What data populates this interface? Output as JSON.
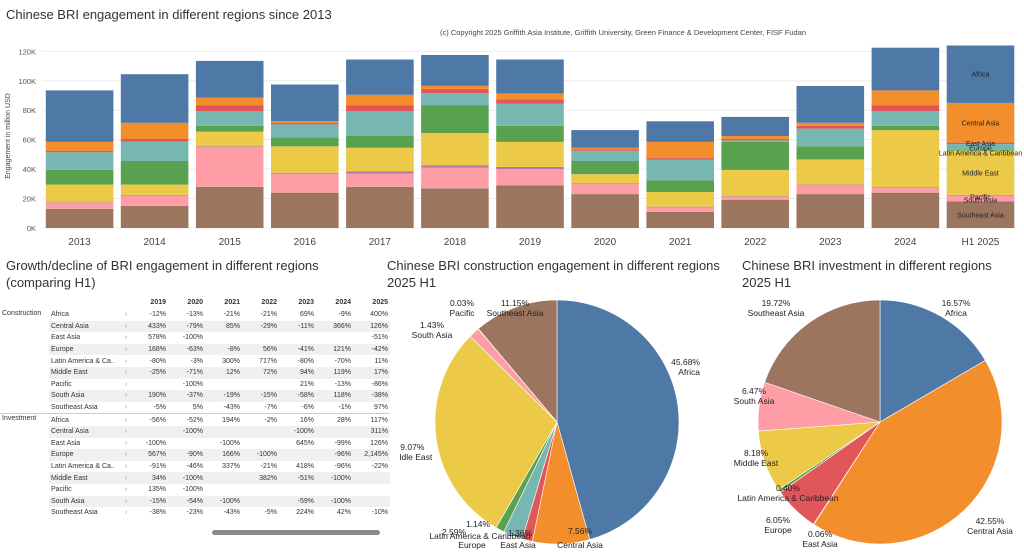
{
  "top": {
    "title": "Chinese BRI engagement in different regions since 2013",
    "copyright": "(c) Copyright 2025 Griffith Asia Institute, Griffith University, Green Finance & Development Center, FISF Fudan"
  },
  "colors": {
    "Africa": "#4e79a7",
    "Central Asia": "#f28e2b",
    "Europe": "#e15759",
    "East Asia": "#76b7b2",
    "Latin America & Caribbean": "#59a14f",
    "Middle East": "#edc948",
    "Pacific": "#b07aa1",
    "South Asia": "#ff9da7",
    "Southeast Asia": "#9c755f"
  },
  "chart_data": [
    {
      "type": "bar",
      "stacked": true,
      "title": "Chinese BRI engagement in different regions since 2013",
      "ylabel": "Engagement in million USD",
      "ylim": [
        0,
        125000
      ],
      "yticks": [
        "0K",
        "20K",
        "40K",
        "60K",
        "80K",
        "100K",
        "120K"
      ],
      "categories": [
        "2013",
        "2014",
        "2015",
        "2016",
        "2017",
        "2018",
        "2019",
        "2020",
        "2021",
        "2022",
        "2023",
        "2024",
        "H1 2025"
      ],
      "series": [
        {
          "name": "Southeast Asia",
          "values": [
            13000,
            15000,
            28000,
            24000,
            28000,
            27000,
            29000,
            23000,
            11000,
            19000,
            23000,
            24000,
            18000
          ]
        },
        {
          "name": "South Asia",
          "values": [
            4000,
            7000,
            27000,
            13000,
            9000,
            14000,
            11000,
            7000,
            3000,
            2000,
            6000,
            3000,
            4000
          ]
        },
        {
          "name": "Pacific",
          "values": [
            500,
            500,
            500,
            500,
            1500,
            1500,
            1500,
            500,
            500,
            500,
            500,
            500,
            500
          ]
        },
        {
          "name": "Middle East",
          "values": [
            12000,
            7000,
            10000,
            18000,
            16000,
            22000,
            17000,
            6000,
            10000,
            18000,
            17000,
            39000,
            30000
          ]
        },
        {
          "name": "Latin America & Caribbean",
          "values": [
            10000,
            16000,
            4000,
            6000,
            8000,
            19000,
            11000,
            9000,
            8000,
            19000,
            9000,
            3000,
            500
          ]
        },
        {
          "name": "East Asia",
          "values": [
            12000,
            13000,
            10000,
            9000,
            17000,
            8000,
            15000,
            7000,
            14000,
            1000,
            12000,
            10000,
            4000
          ]
        },
        {
          "name": "Europe",
          "values": [
            1000,
            2000,
            4000,
            1000,
            4000,
            3000,
            3000,
            1000,
            1000,
            1000,
            2000,
            4000,
            1000
          ]
        },
        {
          "name": "Central Asia",
          "values": [
            6000,
            11000,
            5000,
            1000,
            7000,
            2000,
            4000,
            1000,
            11000,
            2000,
            2000,
            10000,
            27000
          ]
        },
        {
          "name": "Africa",
          "values": [
            35000,
            33000,
            25000,
            25000,
            24000,
            21000,
            23000,
            12000,
            14000,
            13000,
            25000,
            29000,
            39000
          ]
        }
      ],
      "bar_labels": [
        "Africa",
        "Central Asia",
        "East Asia",
        "Europe",
        "Latin America & Caribbean",
        "Middle East",
        "Pacific",
        "South Asia",
        "Southeast Asia"
      ]
    },
    {
      "type": "table",
      "title": "Growth/decline of BRI engagement in different regions (comparing H1)",
      "columns": [
        "2019",
        "2020",
        "2021",
        "2022",
        "2023",
        "2024",
        "2025"
      ],
      "sections": [
        {
          "name": "Construction",
          "rows": [
            {
              "region": "Africa",
              "values": [
                "-12%",
                "-13%",
                "-21%",
                "-21%",
                "69%",
                "-9%",
                "400%"
              ]
            },
            {
              "region": "Central Asia",
              "values": [
                "433%",
                "-79%",
                "85%",
                "-29%",
                "-11%",
                "366%",
                "126%"
              ]
            },
            {
              "region": "East Asia",
              "values": [
                "578%",
                "-100%",
                "",
                "",
                "",
                "",
                "-51%"
              ]
            },
            {
              "region": "Europe",
              "values": [
                "168%",
                "-63%",
                "-8%",
                "56%",
                "-41%",
                "121%",
                "-42%"
              ]
            },
            {
              "region": "Latin America & Ca..",
              "values": [
                "-80%",
                "-3%",
                "300%",
                "717%",
                "-80%",
                "-70%",
                "11%"
              ]
            },
            {
              "region": "Middle East",
              "values": [
                "-25%",
                "-71%",
                "12%",
                "72%",
                "94%",
                "119%",
                "17%"
              ]
            },
            {
              "region": "Pacific",
              "values": [
                "",
                "-100%",
                "",
                "",
                "21%",
                "-13%",
                "-86%"
              ]
            },
            {
              "region": "South Asia",
              "values": [
                "190%",
                "-37%",
                "-19%",
                "-15%",
                "-58%",
                "118%",
                "-38%"
              ]
            },
            {
              "region": "Southeast Asia",
              "values": [
                "-5%",
                "5%",
                "-43%",
                "-7%",
                "-6%",
                "-1%",
                "97%"
              ]
            }
          ]
        },
        {
          "name": "Investment",
          "rows": [
            {
              "region": "Africa",
              "values": [
                "-56%",
                "-52%",
                "194%",
                "-2%",
                "16%",
                "28%",
                "117%"
              ]
            },
            {
              "region": "Central Asia",
              "values": [
                "",
                "-100%",
                "",
                "",
                "-100%",
                "",
                "311%"
              ]
            },
            {
              "region": "East Asia",
              "values": [
                "-100%",
                "",
                "-100%",
                "",
                "645%",
                "-99%",
                "126%"
              ]
            },
            {
              "region": "Europe",
              "values": [
                "567%",
                "-90%",
                "166%",
                "-100%",
                "",
                "-96%",
                "2,145%"
              ]
            },
            {
              "region": "Latin America & Ca..",
              "values": [
                "-91%",
                "-46%",
                "337%",
                "-21%",
                "418%",
                "-96%",
                "-22%"
              ]
            },
            {
              "region": "Middle East",
              "values": [
                "34%",
                "-100%",
                "",
                "382%",
                "-51%",
                "-100%",
                ""
              ]
            },
            {
              "region": "Pacific",
              "values": [
                "135%",
                "-100%",
                "",
                "",
                "",
                "",
                ""
              ]
            },
            {
              "region": "South Asia",
              "values": [
                "-15%",
                "-54%",
                "-100%",
                "",
                "-59%",
                "-100%",
                ""
              ]
            },
            {
              "region": "Southeast Asia",
              "values": [
                "-38%",
                "-23%",
                "-43%",
                "-5%",
                "224%",
                "42%",
                "-10%"
              ]
            }
          ]
        }
      ]
    },
    {
      "type": "pie",
      "title": "Chinese BRI construction engagement in different regions 2025 H1",
      "slices": [
        {
          "label": "Africa",
          "pct": "45.68%",
          "value": 45.68
        },
        {
          "label": "Central Asia",
          "pct": "7.56%",
          "value": 7.56
        },
        {
          "label": "Europe",
          "pct": "",
          "value": 1.36
        },
        {
          "label": "East Asia",
          "pct": "2.59%",
          "value": 2.59
        },
        {
          "label": "Latin America & Caribbean",
          "pct": "1.14%",
          "value": 1.14
        },
        {
          "label": "Middle East",
          "pct": "29.07%",
          "value": 29.07
        },
        {
          "label": "South Asia",
          "pct": "1.43%",
          "value": 1.43
        },
        {
          "label": "Pacific",
          "pct": "0.03%",
          "value": 0.03
        },
        {
          "label": "Southeast Asia",
          "pct": "11.15%",
          "value": 11.15
        }
      ],
      "extra_labels": [
        {
          "text": "1.36%"
        }
      ]
    },
    {
      "type": "pie",
      "title": "Chinese BRI investment in different regions 2025 H1",
      "slices": [
        {
          "label": "Africa",
          "pct": "16.57%",
          "value": 16.57
        },
        {
          "label": "Central Asia",
          "pct": "42.55%",
          "value": 42.55
        },
        {
          "label": "East Asia",
          "pct": "0.06%",
          "value": 0.06
        },
        {
          "label": "Europe",
          "pct": "6.05%",
          "value": 6.05
        },
        {
          "label": "Latin America & Caribbean",
          "pct": "0.40%",
          "value": 0.4
        },
        {
          "label": "Middle East",
          "pct": "8.18%",
          "value": 8.18
        },
        {
          "label": "South Asia",
          "pct": "6.47%",
          "value": 6.47
        },
        {
          "label": "Southeast Asia",
          "pct": "19.72%",
          "value": 19.72
        }
      ]
    }
  ]
}
